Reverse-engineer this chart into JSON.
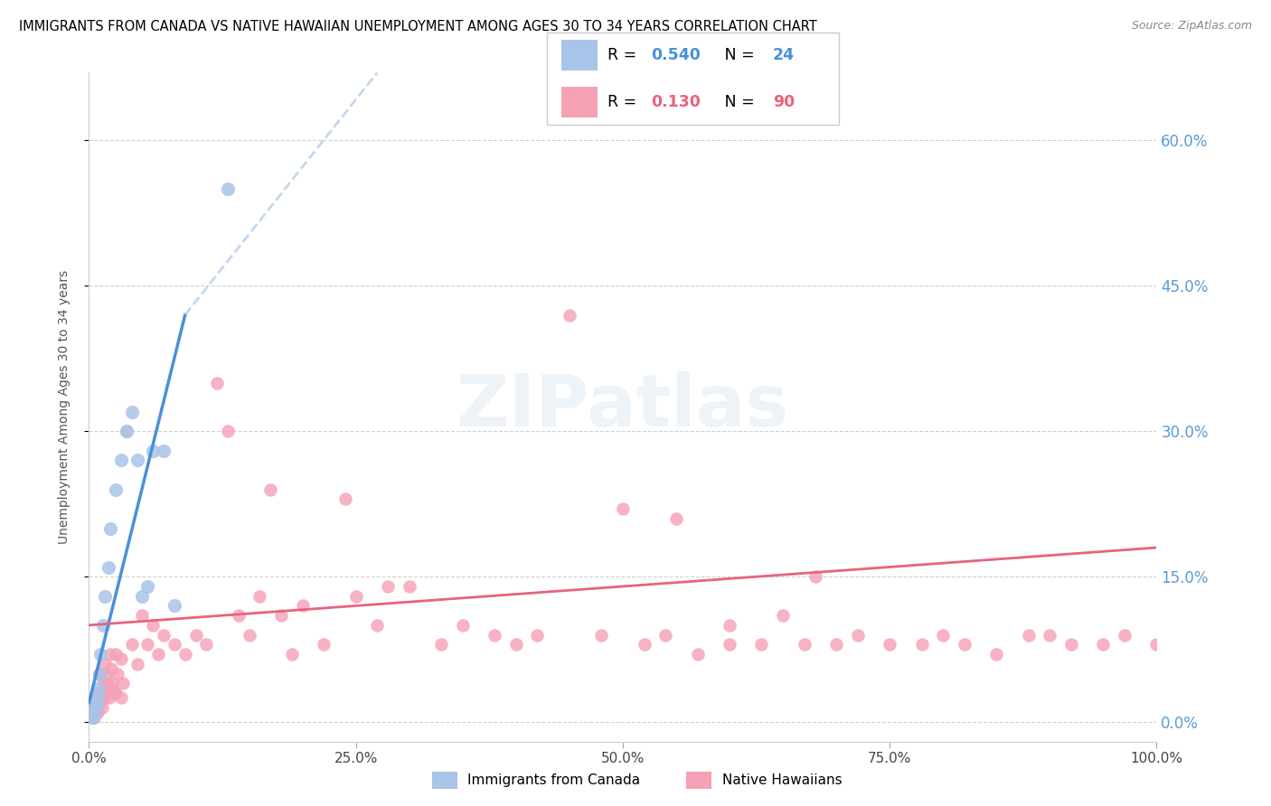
{
  "title": "IMMIGRANTS FROM CANADA VS NATIVE HAWAIIAN UNEMPLOYMENT AMONG AGES 30 TO 34 YEARS CORRELATION CHART",
  "source": "Source: ZipAtlas.com",
  "ylabel": "Unemployment Among Ages 30 to 34 years",
  "xlim": [
    0,
    100
  ],
  "ylim": [
    -2,
    67
  ],
  "yticks": [
    0,
    15,
    30,
    45,
    60
  ],
  "xticks": [
    0,
    25,
    50,
    75,
    100
  ],
  "xtick_labels": [
    "0.0%",
    "25.0%",
    "50.0%",
    "75.0%",
    "100.0%"
  ],
  "ytick_labels": [
    "0.0%",
    "15.0%",
    "30.0%",
    "45.0%",
    "60.0%"
  ],
  "legend_r1": "0.540",
  "legend_n1": "24",
  "legend_r2": "0.130",
  "legend_n2": "90",
  "blue_line_color": "#4a90d9",
  "pink_line_color": "#e8637d",
  "blue_scatter_color": "#a8c4e8",
  "pink_scatter_color": "#f5a0b5",
  "watermark": "ZIPatlas",
  "background_color": "#ffffff",
  "grid_color": "#d0d0d0",
  "right_label_color": "#5b9bd5",
  "blue_x": [
    0.3,
    0.4,
    0.5,
    0.6,
    0.7,
    0.8,
    0.9,
    1.0,
    1.1,
    1.3,
    1.5,
    1.8,
    2.0,
    2.5,
    3.0,
    3.5,
    4.0,
    4.5,
    5.0,
    5.5,
    6.0,
    7.0,
    8.0,
    13.0
  ],
  "blue_y": [
    0.5,
    0.5,
    1.0,
    1.5,
    2.0,
    2.5,
    3.5,
    5.0,
    7.0,
    10.0,
    13.0,
    16.0,
    20.0,
    24.0,
    27.0,
    30.0,
    32.0,
    27.0,
    13.0,
    14.0,
    28.0,
    28.0,
    12.0,
    55.0
  ],
  "pink_x": [
    0.3,
    0.4,
    0.5,
    0.5,
    0.6,
    0.7,
    0.8,
    0.8,
    0.9,
    1.0,
    1.0,
    1.1,
    1.2,
    1.3,
    1.4,
    1.5,
    1.5,
    1.6,
    1.7,
    1.8,
    1.9,
    2.0,
    2.0,
    2.1,
    2.2,
    2.3,
    2.5,
    2.5,
    2.7,
    3.0,
    3.0,
    3.2,
    3.5,
    4.0,
    4.5,
    5.0,
    5.5,
    6.0,
    6.5,
    7.0,
    8.0,
    9.0,
    10.0,
    11.0,
    12.0,
    13.0,
    14.0,
    15.0,
    16.0,
    17.0,
    18.0,
    19.0,
    20.0,
    22.0,
    24.0,
    25.0,
    27.0,
    28.0,
    30.0,
    33.0,
    35.0,
    38.0,
    40.0,
    42.0,
    45.0,
    48.0,
    50.0,
    52.0,
    54.0,
    55.0,
    57.0,
    60.0,
    63.0,
    65.0,
    67.0,
    70.0,
    72.0,
    75.0,
    78.0,
    80.0,
    82.0,
    85.0,
    88.0,
    90.0,
    92.0,
    95.0,
    97.0,
    100.0,
    68.0,
    60.0
  ],
  "pink_y": [
    1.0,
    0.5,
    1.5,
    0.5,
    2.0,
    1.0,
    2.5,
    1.0,
    3.0,
    5.0,
    2.0,
    3.0,
    1.5,
    4.0,
    2.5,
    6.0,
    3.5,
    5.0,
    4.0,
    3.0,
    2.5,
    7.0,
    3.5,
    5.5,
    4.0,
    3.0,
    7.0,
    3.0,
    5.0,
    6.5,
    2.5,
    4.0,
    30.0,
    8.0,
    6.0,
    11.0,
    8.0,
    10.0,
    7.0,
    9.0,
    8.0,
    7.0,
    9.0,
    8.0,
    35.0,
    30.0,
    11.0,
    9.0,
    13.0,
    24.0,
    11.0,
    7.0,
    12.0,
    8.0,
    23.0,
    13.0,
    10.0,
    14.0,
    14.0,
    8.0,
    10.0,
    9.0,
    8.0,
    9.0,
    42.0,
    9.0,
    22.0,
    8.0,
    9.0,
    21.0,
    7.0,
    8.0,
    8.0,
    11.0,
    8.0,
    8.0,
    9.0,
    8.0,
    8.0,
    9.0,
    8.0,
    7.0,
    9.0,
    9.0,
    8.0,
    8.0,
    9.0,
    8.0,
    15.0,
    10.0
  ],
  "blue_line_x0": 0,
  "blue_line_y0": 2.0,
  "blue_line_x1": 9.0,
  "blue_line_y1": 42.0,
  "blue_dash_x0": 9.0,
  "blue_dash_y0": 42.0,
  "blue_dash_x1": 27.0,
  "blue_dash_y1": 67.0,
  "pink_line_x0": 0,
  "pink_line_y0": 10.0,
  "pink_line_x1": 100,
  "pink_line_y1": 18.0
}
